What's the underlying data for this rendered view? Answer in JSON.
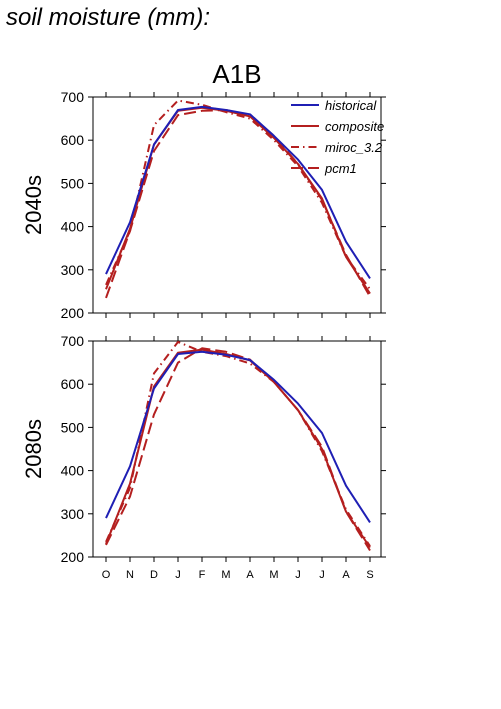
{
  "page_title": "soil moisture (mm):",
  "scenario": "A1B",
  "colors": {
    "historical": "#1f1fb4",
    "models": "#b41f1f"
  },
  "legend": [
    {
      "name": "historical",
      "style": "solid",
      "color": "#1f1fb4"
    },
    {
      "name": "composite",
      "style": "solid",
      "color": "#b41f1f"
    },
    {
      "name": "miroc_3.2",
      "style": "dashdot",
      "color": "#b41f1f"
    },
    {
      "name": "pcm1",
      "style": "dashed",
      "color": "#b41f1f"
    }
  ],
  "chart_data": [
    {
      "type": "line",
      "title": "A1B",
      "row_label": "2040s",
      "categories": [
        "O",
        "N",
        "D",
        "J",
        "F",
        "M",
        "A",
        "M",
        "J",
        "J",
        "A",
        "S"
      ],
      "ylim": [
        200,
        700
      ],
      "yticks": [
        200,
        300,
        400,
        500,
        600,
        700
      ],
      "legend_position": "top-right",
      "series": [
        {
          "name": "historical",
          "style": "solid",
          "values": [
            290,
            410,
            590,
            670,
            677,
            670,
            660,
            610,
            555,
            485,
            365,
            280
          ]
        },
        {
          "name": "composite",
          "style": "solid",
          "values": [
            255,
            395,
            590,
            668,
            675,
            668,
            655,
            605,
            545,
            465,
            330,
            245
          ]
        },
        {
          "name": "miroc_3.2",
          "style": "dashdot",
          "values": [
            265,
            390,
            635,
            692,
            682,
            665,
            650,
            600,
            540,
            455,
            330,
            255
          ]
        },
        {
          "name": "pcm1",
          "style": "dashed",
          "values": [
            235,
            390,
            575,
            658,
            668,
            670,
            658,
            610,
            545,
            462,
            335,
            238
          ]
        }
      ]
    },
    {
      "type": "line",
      "title": "",
      "row_label": "2080s",
      "categories": [
        "O",
        "N",
        "D",
        "J",
        "F",
        "M",
        "A",
        "M",
        "J",
        "J",
        "A",
        "S"
      ],
      "ylim": [
        200,
        700
      ],
      "yticks": [
        200,
        300,
        400,
        500,
        600,
        700
      ],
      "legend_position": "",
      "series": [
        {
          "name": "historical",
          "style": "solid",
          "values": [
            290,
            410,
            590,
            670,
            675,
            668,
            656,
            610,
            555,
            487,
            365,
            280
          ]
        },
        {
          "name": "composite",
          "style": "solid",
          "values": [
            230,
            370,
            595,
            673,
            680,
            670,
            655,
            605,
            540,
            450,
            305,
            222
          ]
        },
        {
          "name": "miroc_3.2",
          "style": "dashdot",
          "values": [
            235,
            360,
            625,
            698,
            675,
            665,
            648,
            605,
            540,
            445,
            310,
            225
          ]
        },
        {
          "name": "pcm1",
          "style": "dashed",
          "values": [
            228,
            340,
            530,
            650,
            683,
            675,
            657,
            605,
            540,
            455,
            305,
            215
          ]
        }
      ]
    }
  ]
}
